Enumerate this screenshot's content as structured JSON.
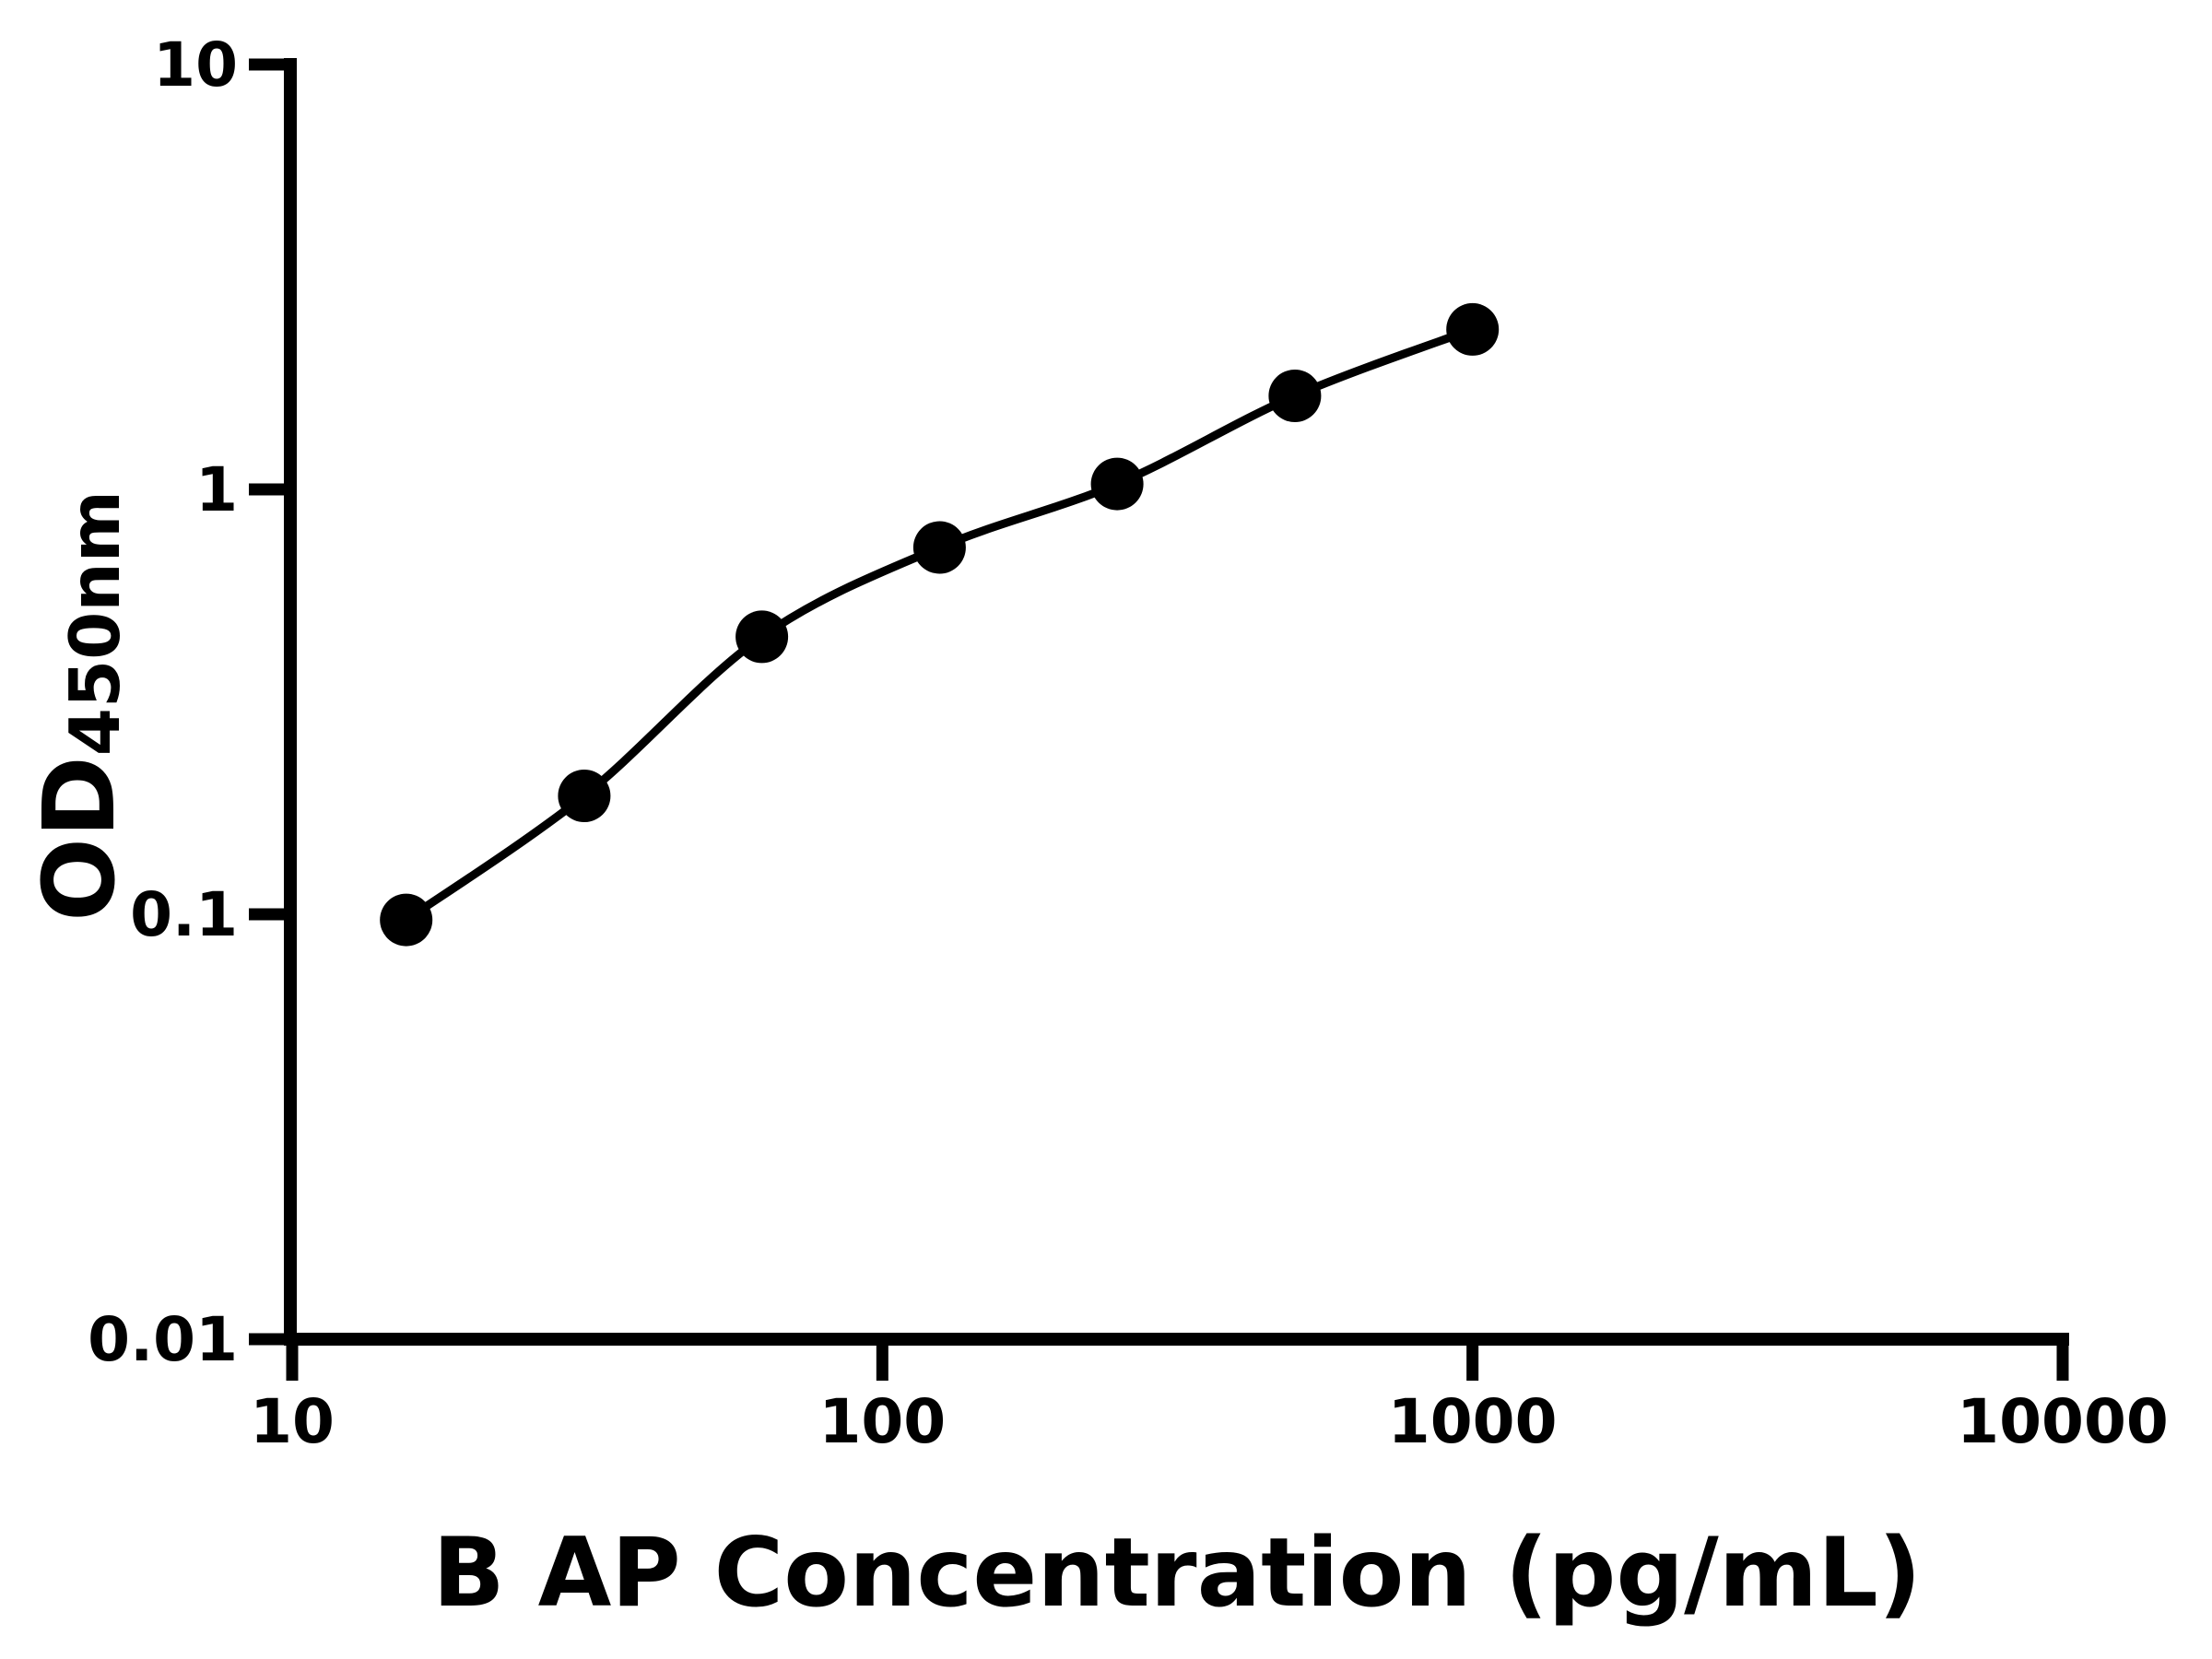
{
  "figure": {
    "background": "#ffffff",
    "foreground": "#000000"
  },
  "chart_data": {
    "type": "scatter",
    "title": "",
    "xlabel": "B AP Concentration (pg/mL)",
    "ylabel_main": "OD",
    "ylabel_sub": "450nm",
    "x": [
      15.6,
      31.25,
      62.5,
      125,
      250,
      500,
      1000
    ],
    "y": [
      0.097,
      0.19,
      0.45,
      0.73,
      1.03,
      1.66,
      2.38
    ],
    "curve": "smooth fit line through all points",
    "x_scale": "log",
    "y_scale": "log",
    "xlim": [
      10,
      10000
    ],
    "ylim": [
      0.01,
      10
    ],
    "x_ticks": [
      10,
      100,
      1000,
      10000
    ],
    "x_tick_labels": [
      "10",
      "100",
      "1000",
      "10000"
    ],
    "y_ticks": [
      10,
      1,
      0.1,
      0.01
    ],
    "y_tick_labels": [
      "10",
      "1",
      "0.1",
      "0.01"
    ],
    "grid": false,
    "legend": false,
    "marker": "filled-circle",
    "marker_color": "#000000",
    "line_color": "#000000",
    "axis_color": "#000000"
  }
}
